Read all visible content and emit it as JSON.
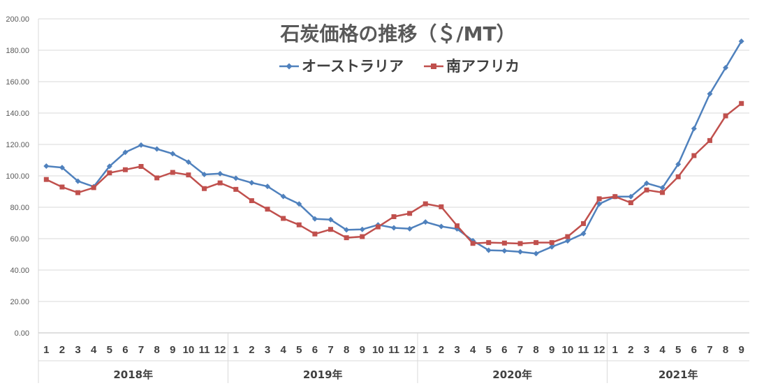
{
  "chart_data": {
    "type": "line",
    "title": "石炭価格の推移（＄/MT）",
    "ylim": [
      0,
      200
    ],
    "yticks": [
      "0.00",
      "20.00",
      "40.00",
      "60.00",
      "80.00",
      "100.00",
      "120.00",
      "140.00",
      "160.00",
      "180.00",
      "200.00"
    ],
    "grid": true,
    "legend_position": "top-center",
    "years": [
      {
        "label": "2018年",
        "months": [
          "1",
          "2",
          "3",
          "4",
          "5",
          "6",
          "7",
          "8",
          "9",
          "10",
          "11",
          "12"
        ]
      },
      {
        "label": "2019年",
        "months": [
          "1",
          "2",
          "3",
          "4",
          "5",
          "6",
          "7",
          "8",
          "9",
          "10",
          "11",
          "12"
        ]
      },
      {
        "label": "2020年",
        "months": [
          "1",
          "2",
          "3",
          "4",
          "5",
          "6",
          "7",
          "8",
          "9",
          "10",
          "11",
          "12"
        ]
      },
      {
        "label": "2021年",
        "months": [
          "1",
          "2",
          "3",
          "4",
          "5",
          "6",
          "7",
          "8",
          "9"
        ]
      }
    ],
    "series": [
      {
        "name": "オーストラリア",
        "color": "#4F81BD",
        "marker": "diamond",
        "values": [
          106.2,
          105.3,
          96.6,
          93.1,
          106.1,
          115.0,
          119.6,
          117.1,
          114.1,
          108.8,
          100.9,
          101.4,
          98.5,
          95.6,
          93.3,
          86.9,
          82.1,
          72.6,
          72.1,
          65.6,
          65.9,
          68.8,
          66.9,
          66.3,
          70.6,
          67.8,
          66.2,
          58.7,
          52.6,
          52.3,
          51.6,
          50.5,
          54.8,
          58.6,
          63.2,
          82.1,
          86.8,
          86.8,
          95.3,
          92.4,
          107.4,
          130.1,
          152.2,
          168.9,
          185.7
        ]
      },
      {
        "name": "南アフリカ",
        "color": "#C0504D",
        "marker": "square",
        "values": [
          97.7,
          92.9,
          89.3,
          92.5,
          101.9,
          103.9,
          106.0,
          98.7,
          102.2,
          100.6,
          91.9,
          95.5,
          91.4,
          84.2,
          78.8,
          72.9,
          68.8,
          63.0,
          65.9,
          60.6,
          61.3,
          67.5,
          74.0,
          76.1,
          82.2,
          80.3,
          68.2,
          57.0,
          57.5,
          57.2,
          56.9,
          57.5,
          57.5,
          61.3,
          69.6,
          85.4,
          86.8,
          82.9,
          91.0,
          89.4,
          99.4,
          112.9,
          122.5,
          138.2,
          146.1
        ]
      }
    ]
  }
}
